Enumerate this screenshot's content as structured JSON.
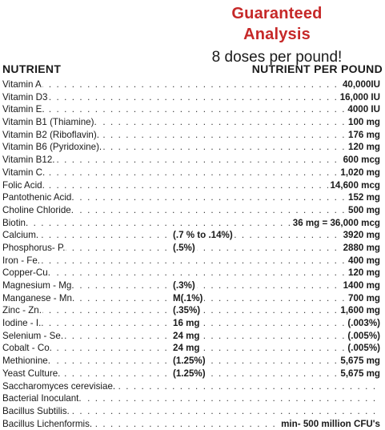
{
  "header": {
    "title": "Guaranteed Analysis",
    "subtitle": "8 doses per pound!"
  },
  "columns": {
    "nutrient": "NUTRIENT",
    "per_pound": "NUTRIENT PER POUND"
  },
  "rows": [
    {
      "name": "Vitamin A",
      "pct": "",
      "amount": "40,000IU"
    },
    {
      "name": "Vitamin D3",
      "pct": "",
      "amount": "16,000 IU"
    },
    {
      "name": "Vitamin E.",
      "pct": "",
      "amount": "4000 IU"
    },
    {
      "name": "Vitamin B1 (Thiamine).",
      "pct": "",
      "amount": "100 mg"
    },
    {
      "name": "Vitamin B2 (Riboflavin).",
      "pct": "",
      "amount": "176 mg"
    },
    {
      "name": "Vitamin B6 (Pyridoxine).",
      "pct": "",
      "amount": "120 mg"
    },
    {
      "name": "Vitamin B12.",
      "pct": "",
      "amount": "600 mcg"
    },
    {
      "name": "Vitamin C.",
      "pct": "",
      "amount": "1,020 mg"
    },
    {
      "name": "Folic Acid.",
      "pct": "",
      "amount": "14,600 mcg"
    },
    {
      "name": "Pantothenic Acid.",
      "pct": "",
      "amount": "152 mg"
    },
    {
      "name": "Choline Chloride.",
      "pct": "",
      "amount": "500 mg"
    },
    {
      "name": "Biotin.",
      "pct": "",
      "amount": "36 mg = 36,000 mcg"
    },
    {
      "name": "Calcium.",
      "pct": "(.7 % to .14%)",
      "amount": "3920 mg"
    },
    {
      "name": "Phosphorus- P.",
      "pct": "(.5%)",
      "amount": "2880 mg"
    },
    {
      "name": "Iron - Fe.",
      "pct": "",
      "amount": "400 mg"
    },
    {
      "name": "Copper-Cu.",
      "pct": "",
      "amount": "120 mg"
    },
    {
      "name": "Magnesium - Mg.",
      "pct": "(.3%)",
      "amount": "1400 mg"
    },
    {
      "name": "Manganese - Mn.",
      "pct": "M(.1%)",
      "amount": "700 mg"
    },
    {
      "name": "Zinc - Zn.",
      "pct": "(.35%)",
      "amount": "1,600 mg"
    },
    {
      "name": "Iodine - I.",
      "pct": "16 mg",
      "amount": "(.003%)"
    },
    {
      "name": "Selenium - Se.",
      "pct": "24 mg",
      "amount": "(.005%)"
    },
    {
      "name": "Cobalt - Co.",
      "pct": "24 mg",
      "amount": "(.005%)"
    },
    {
      "name": "Methionine.",
      "pct": "(1.25%)",
      "amount": "5,675 mg"
    },
    {
      "name": "Yeast Culture.",
      "pct": "(1.25%)",
      "amount": "5,675 mg"
    },
    {
      "name": "Saccharomyces cerevisiae.",
      "pct": "",
      "amount": ""
    },
    {
      "name": "Bacterial Inoculant.",
      "pct": "",
      "amount": ""
    },
    {
      "name": "Bacillus Subtilis.",
      "pct": "",
      "amount": ""
    },
    {
      "name": "Bacillus Lichenformis.",
      "pct": "",
      "amount": "min- 500 million CFU's"
    }
  ]
}
